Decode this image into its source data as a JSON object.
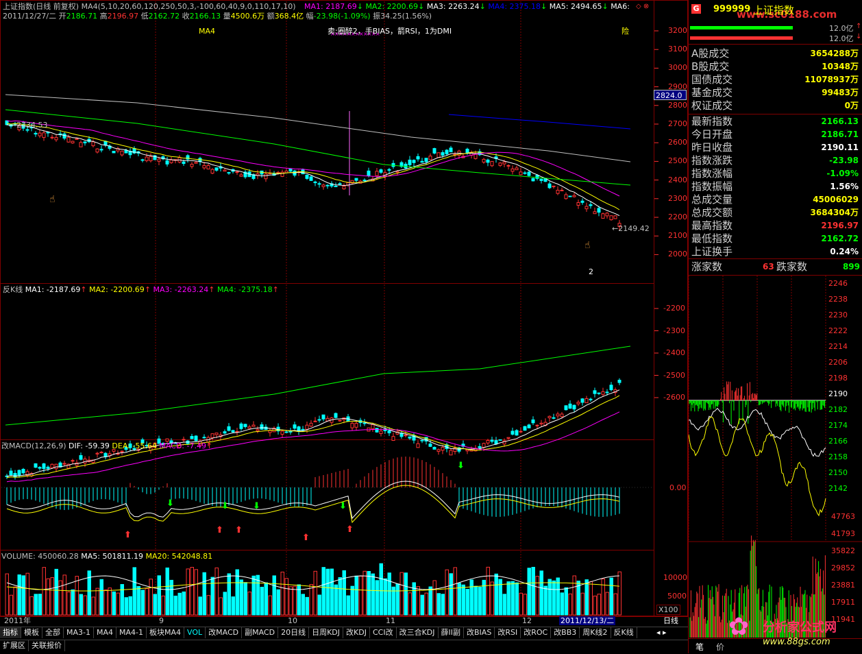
{
  "colors": {
    "up": "#ff3232",
    "down": "#00ffff",
    "ma1": "#ffffff",
    "ma2": "#ffff00",
    "ma3": "#ff00ff",
    "ma4": "#00ff00",
    "ma5": "#0000ff",
    "grid": "#800000",
    "axis": "#ff3232",
    "green": "#00ff00",
    "yellow": "#ffff00"
  },
  "header": {
    "line1": {
      "title": "上证指数(日线 前复权)",
      "ma_params": "MA4(5,10,20,60,120,250,50,3,-100,60,40,9,0,110,17,10)",
      "ma1": "MA1: 2187.69",
      "ma2": "MA2: 2200.69",
      "ma3": "MA3: 2263.24",
      "ma4": "MA4: 2375.18",
      "ma5": "MA5: 2494.65",
      "ma6": "MA6:"
    },
    "line2": {
      "date": "2011/12/27/二",
      "open_lbl": "开",
      "open": "2186.71",
      "high_lbl": "高",
      "high": "2196.97",
      "low_lbl": "低",
      "low": "2162.72",
      "close_lbl": "收",
      "close": "2166.13",
      "vol_lbl": "量",
      "vol": "4500.6万",
      "amt_lbl": "额",
      "amt": "368.4亿",
      "chg_lbl": "幅",
      "chg": "-23.98(-1.09%)",
      "amp_lbl": "振",
      "amp": "34.25(1.56%)"
    },
    "line3": {
      "ma4_tag": "MA4",
      "note": "卖:圈醉2，手BIAS，箭RSI，1为DMI",
      "risk": "险"
    }
  },
  "main_chart": {
    "y_ticks": [
      "3200",
      "3100",
      "3000",
      "2900",
      "2800",
      "2700",
      "2600",
      "2500",
      "2400",
      "2300",
      "2200",
      "2100",
      "2000"
    ],
    "price_box": "2824.0",
    "labels": {
      "start_val": "2734.53",
      "low_val": "←2149.42",
      "num2": "2"
    }
  },
  "k2_chart": {
    "name": "反K线",
    "ma1": "MA1: -2187.69",
    "ma2": "MA2: -2200.69",
    "ma3": "MA3: -2263.24",
    "ma4": "MA4: -2375.18",
    "y_ticks": [
      "-2200",
      "-2300",
      "-2400",
      "-2500",
      "-2600"
    ]
  },
  "macd_chart": {
    "name": "改MACD(12,26,9)",
    "dif": "DIF: -59.39",
    "dea": "DEA: -55.64",
    "macd": "MACD: -7.49",
    "y_ticks": [
      "0.00"
    ]
  },
  "vol_chart": {
    "name": "VOLUME: 450060.28",
    "ma5": "MA5: 501811.19",
    "ma20": "MA20: 542048.81",
    "y_ticks": [
      "10000",
      "5000"
    ],
    "unit": "X100"
  },
  "x_axis": {
    "labels": [
      "2011年",
      "9",
      "10",
      "11",
      "12"
    ],
    "cursor": "2011/12/13/二",
    "period": "日线"
  },
  "bottom_tabs": [
    "指标",
    "模板",
    "全部",
    "MA3-1",
    "MA4",
    "MA4-1",
    "板块MA4",
    "VOL",
    "改MACD",
    "副MACD",
    "20日线",
    "日周KDJ",
    "改KDJ",
    "CCI改",
    "改三合KDJ",
    "薛II副",
    "改BIAS",
    "改RSI",
    "改ROC",
    "改BB3",
    "周K线2",
    "反K线"
  ],
  "bottom_tabs2": [
    "扩展区",
    "关联报价"
  ],
  "right_panel": {
    "code": "999999",
    "name": "上证指数",
    "watermark": "www.sc0188.com",
    "bar1_val": "12.0亿",
    "bar2_val": "12.0亿",
    "rows": [
      {
        "k": "A股成交",
        "v": "3654288万",
        "c": "#ffff00"
      },
      {
        "k": "B股成交",
        "v": "10348万",
        "c": "#ffff00"
      },
      {
        "k": "国债成交",
        "v": "11078937万",
        "c": "#ffff00"
      },
      {
        "k": "基金成交",
        "v": "99483万",
        "c": "#ffff00"
      },
      {
        "k": "权证成交",
        "v": "0万",
        "c": "#ffff00"
      },
      {
        "k": "最新指数",
        "v": "2166.13",
        "c": "#00ff00"
      },
      {
        "k": "今日开盘",
        "v": "2186.71",
        "c": "#00ff00"
      },
      {
        "k": "昨日收盘",
        "v": "2190.11",
        "c": "#ffffff"
      },
      {
        "k": "指数涨跌",
        "v": "-23.98",
        "c": "#00ff00"
      },
      {
        "k": "指数涨幅",
        "v": "-1.09%",
        "c": "#00ff00"
      },
      {
        "k": "指数振幅",
        "v": "1.56%",
        "c": "#ffffff"
      },
      {
        "k": "总成交量",
        "v": "45006029",
        "c": "#ffff00"
      },
      {
        "k": "总成交额",
        "v": "3684304万",
        "c": "#ffff00"
      },
      {
        "k": "最高指数",
        "v": "2196.97",
        "c": "#ff3232"
      },
      {
        "k": "最低指数",
        "v": "2162.72",
        "c": "#00ff00"
      },
      {
        "k": "上证换手",
        "v": "0.24%",
        "c": "#ffffff"
      }
    ],
    "up_lbl": "涨家数",
    "up_val": "63",
    "down_lbl": "跌家数",
    "down_val": "899",
    "minute_ticks": [
      "2246",
      "2238",
      "2230",
      "2222",
      "2214",
      "2206",
      "2198",
      "2190",
      "2182",
      "2174",
      "2166",
      "2158",
      "2150",
      "2142"
    ],
    "mvol_ticks": [
      "47763",
      "41793",
      "35822",
      "29852",
      "23881",
      "17911",
      "11941"
    ],
    "tabs": [
      "笔",
      "价"
    ],
    "logo": "分析家公式网",
    "logo_url": "www.88gs.com"
  }
}
